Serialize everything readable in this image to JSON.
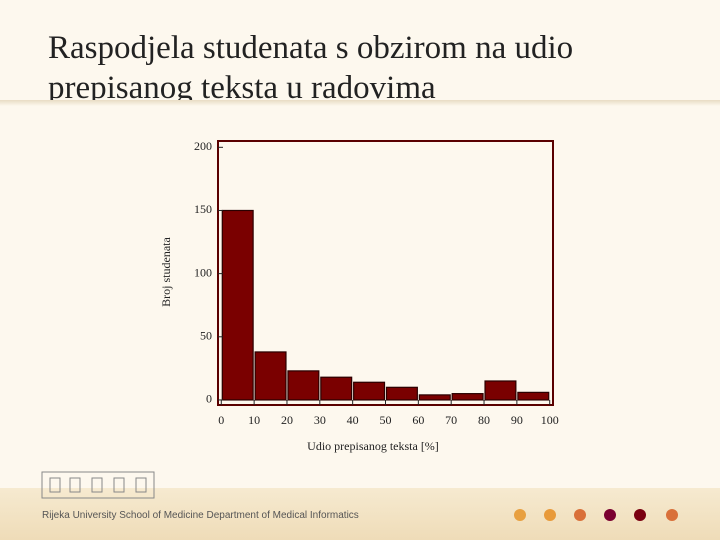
{
  "chart_data": {
    "type": "histogram",
    "title": "Raspodjela studenata s obzirom na udio prepisanog teksta u radovima",
    "x_label": "Udio prepisanog teksta [%]",
    "y_label": "Broj studenata",
    "bins": [
      0,
      10,
      20,
      30,
      40,
      50,
      60,
      70,
      80,
      90,
      100
    ],
    "values": [
      150,
      38,
      23,
      18,
      14,
      10,
      4,
      5,
      15,
      6
    ],
    "color": "#7a0000",
    "xlim": [
      -1,
      101
    ],
    "xticks": [
      0,
      10,
      20,
      30,
      40,
      50,
      60,
      70,
      80,
      90,
      100
    ],
    "ylim": [
      -4,
      205
    ],
    "yticks": [
      0,
      50,
      100,
      150,
      200
    ],
    "grid": false
  },
  "footer": "Rijeka University School of Medicine Department of Medical Informatics"
}
